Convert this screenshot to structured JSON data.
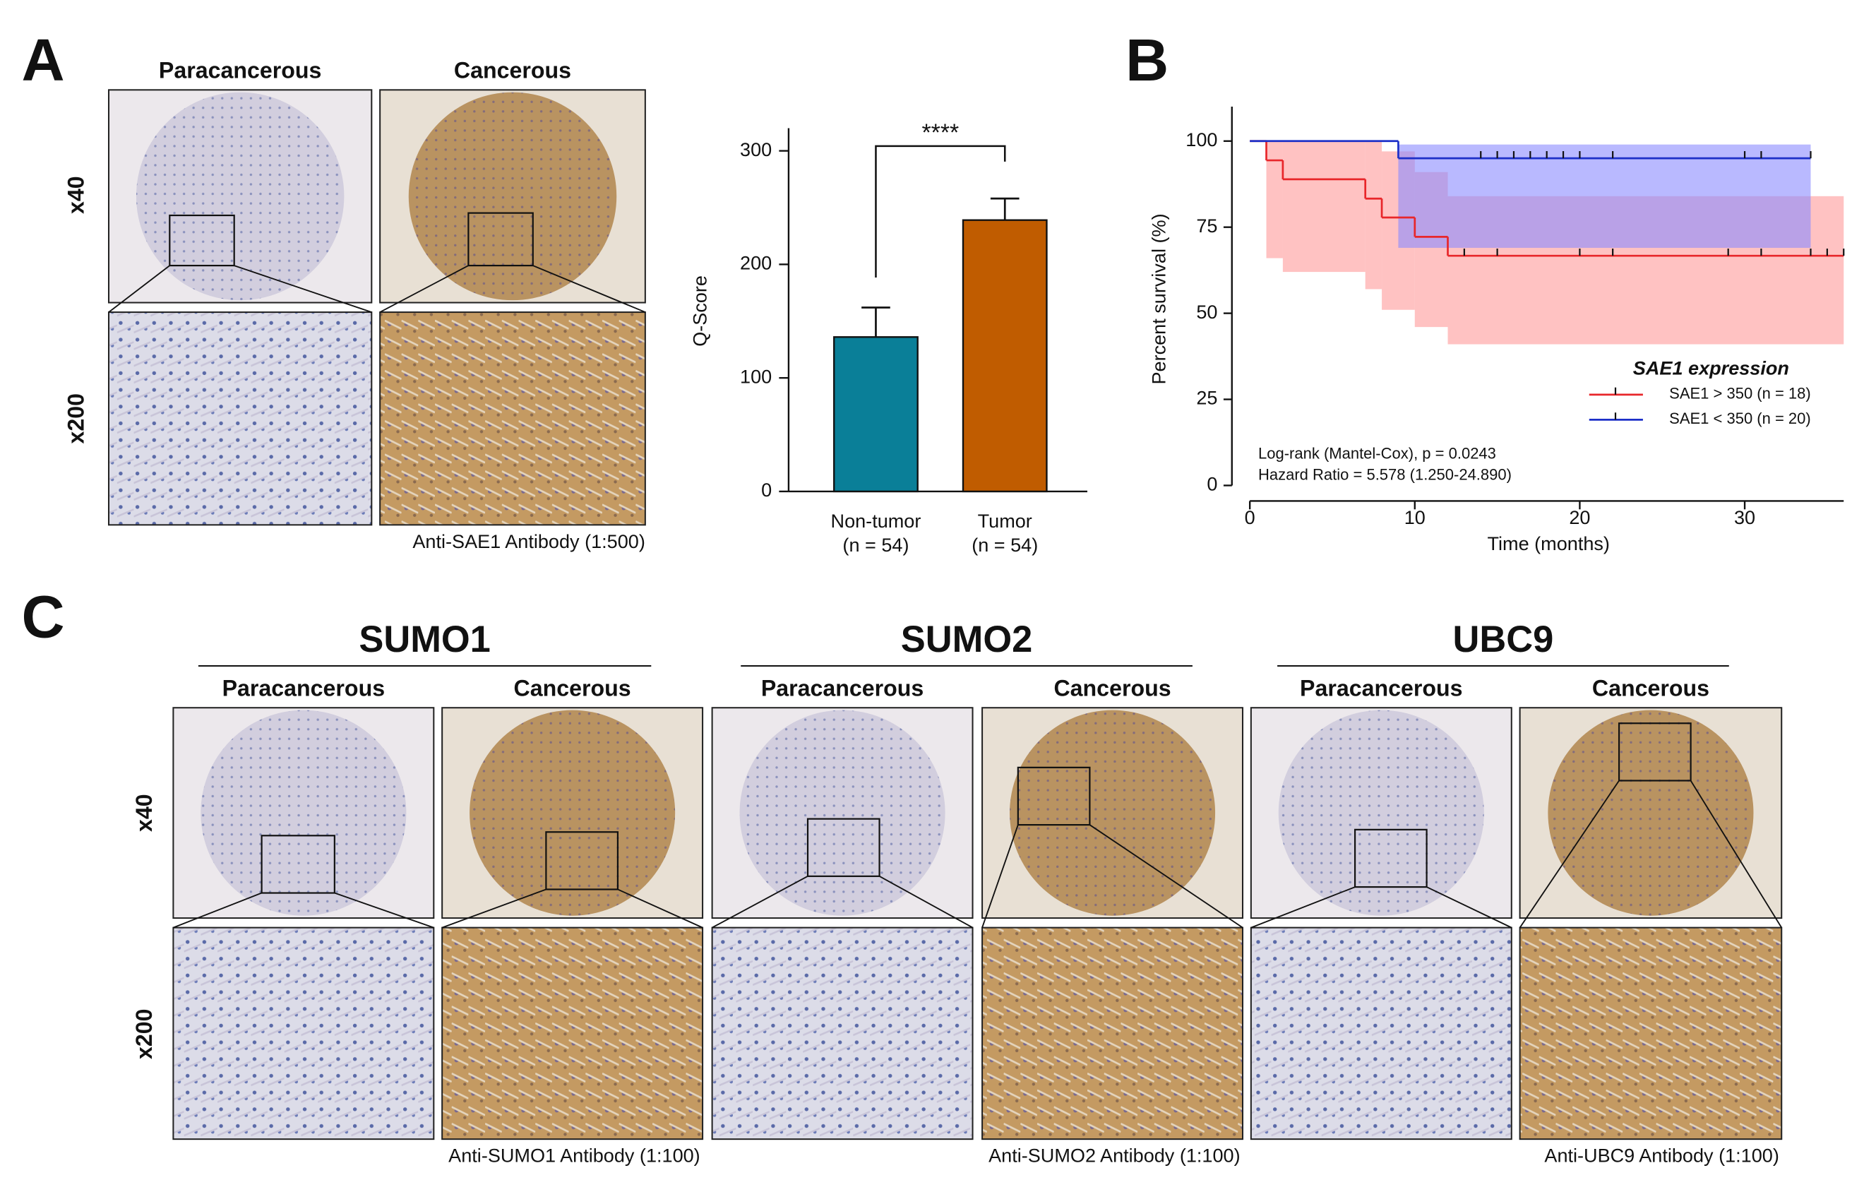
{
  "panel_labels": [
    "A",
    "B",
    "C"
  ],
  "panel_a": {
    "column_labels": [
      "Paracancerous",
      "Cancerous"
    ],
    "row_labels": [
      "x40",
      "x200"
    ],
    "caption": "Anti-SAE1 Antibody (1:500)"
  },
  "panel_c": {
    "row_labels": [
      "x40",
      "x200"
    ],
    "groups": [
      {
        "title": "SUMO1",
        "column_labels": [
          "Paracancerous",
          "Cancerous"
        ],
        "caption": "Anti-SUMO1 Antibody (1:100)"
      },
      {
        "title": "SUMO2",
        "column_labels": [
          "Paracancerous",
          "Cancerous"
        ],
        "caption": "Anti-SUMO2 Antibody (1:100)"
      },
      {
        "title": "UBC9",
        "column_labels": [
          "Paracancerous",
          "Cancerous"
        ],
        "caption": "Anti-UBC9 Antibody (1:100)"
      }
    ]
  },
  "chart_data": [
    {
      "type": "bar",
      "y_label": "Q-Score",
      "categories": [
        "Non-tumor",
        "Tumor"
      ],
      "category_notes": [
        "(n = 54)",
        "(n = 54)"
      ],
      "values": [
        136,
        239
      ],
      "errors": [
        26,
        19
      ],
      "colors": [
        "#0a7f98",
        "#c05c00"
      ],
      "ylim": [
        0,
        320
      ],
      "yticks": [
        0,
        100,
        200,
        300
      ],
      "annotation": "****"
    },
    {
      "type": "survival",
      "x_label": "Time (months)",
      "y_label": "Percent survival (%)",
      "xlim": [
        0,
        36
      ],
      "xticks": [
        0,
        10,
        20,
        30
      ],
      "ylim": [
        0,
        110
      ],
      "yticks": [
        0,
        25,
        50,
        75,
        100
      ],
      "legend_title": "SAE1 expression",
      "legend_position": "lower right",
      "series": [
        {
          "name": "SAE1 > 350 (n = 18)",
          "color": "#e8262a",
          "band_color": "#ff9a9a",
          "x": [
            0,
            1,
            2,
            7,
            8,
            10,
            12,
            36
          ],
          "values": [
            100,
            94.4,
            88.9,
            83.3,
            77.8,
            72.2,
            66.7,
            66.7
          ],
          "ci_lower": [
            100,
            66,
            62,
            57,
            51,
            46,
            41,
            41
          ],
          "ci_upper": [
            100,
            100,
            100,
            100,
            97,
            91,
            84,
            84
          ],
          "censored": [
            13,
            15,
            20,
            22,
            29,
            31,
            34,
            35,
            36
          ]
        },
        {
          "name": "SAE1 < 350 (n = 20)",
          "color": "#1c2fc8",
          "band_color": "#8a8aff",
          "x": [
            0,
            9,
            34
          ],
          "values": [
            100,
            95,
            95
          ],
          "ci_lower": [
            100,
            69,
            69
          ],
          "ci_upper": [
            100,
            99,
            99
          ],
          "censored": [
            14,
            15,
            16,
            17,
            18,
            19,
            20,
            22,
            30,
            31,
            34
          ]
        }
      ],
      "annotations": [
        "Log-rank (Mantel-Cox), p = 0.0243",
        "Hazard Ratio = 5.578 (1.250-24.890)"
      ]
    }
  ]
}
